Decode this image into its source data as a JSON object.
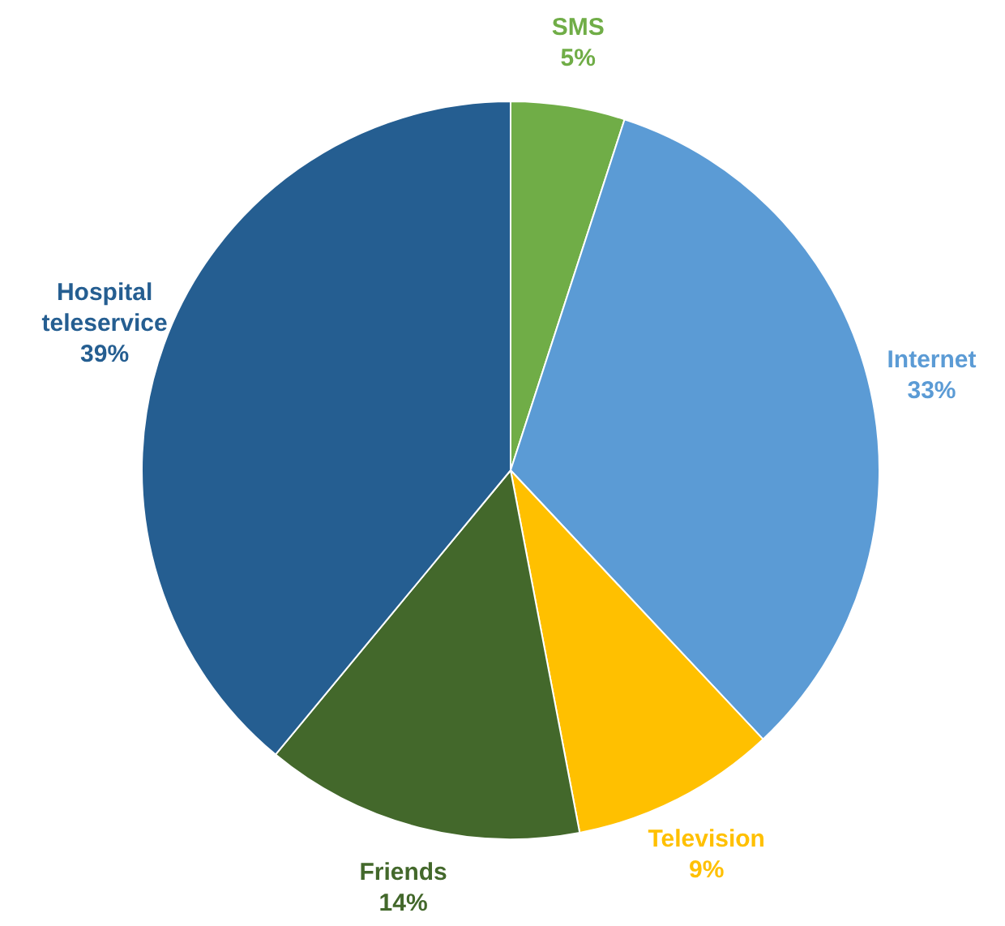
{
  "chart_data": {
    "type": "pie",
    "categories": [
      "SMS",
      "Internet",
      "Television",
      "Friends",
      "Hospital teleservice"
    ],
    "values": [
      5,
      33,
      9,
      14,
      39
    ],
    "value_labels": [
      "5%",
      "33%",
      "9%",
      "14%",
      "39%"
    ],
    "colors": [
      "#70ad47",
      "#5b9bd5",
      "#ffc000",
      "#43682b",
      "#255e91"
    ],
    "legend": false
  }
}
